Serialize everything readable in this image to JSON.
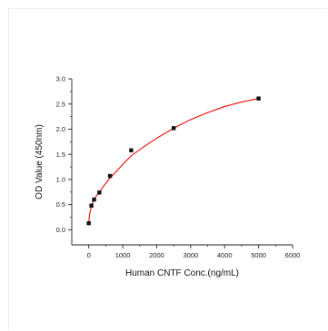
{
  "chart_data": {
    "type": "scatter",
    "title": "",
    "xlabel": "Human CNTF Conc.(ng/mL)",
    "ylabel": "OD Value (450nm)",
    "xlim": [
      -500,
      6000
    ],
    "ylim": [
      -0.3,
      3.0
    ],
    "x_ticks": [
      0,
      1000,
      2000,
      3000,
      4000,
      5000,
      6000
    ],
    "x_tick_labels": [
      "0",
      "1000",
      "2000",
      "3000",
      "4000",
      "5000",
      "6000"
    ],
    "y_ticks": [
      0.0,
      0.5,
      1.0,
      1.5,
      2.0,
      2.5,
      3.0
    ],
    "y_tick_labels": [
      "0.0",
      "0.5",
      "1.0",
      "1.5",
      "2.0",
      "2.5",
      "3.0"
    ],
    "series": [
      {
        "marker": "square",
        "color": "#111111",
        "x": [
          0,
          78,
          156,
          312,
          625,
          1250,
          2500,
          5000
        ],
        "y": [
          0.13,
          0.48,
          0.6,
          0.74,
          1.07,
          1.58,
          2.02,
          2.61
        ]
      }
    ],
    "fit_curve": {
      "color": "#e8201a",
      "x": [
        0,
        20,
        50,
        78,
        120,
        156,
        220,
        312,
        450,
        625,
        850,
        1000,
        1250,
        1600,
        2000,
        2500,
        3000,
        3500,
        4000,
        4500,
        5000
      ],
      "y": [
        0.13,
        0.28,
        0.39,
        0.47,
        0.55,
        0.6,
        0.67,
        0.75,
        0.88,
        1.03,
        1.19,
        1.3,
        1.47,
        1.64,
        1.82,
        2.02,
        2.19,
        2.33,
        2.45,
        2.54,
        2.61
      ]
    },
    "grid": false,
    "legend": "none"
  }
}
